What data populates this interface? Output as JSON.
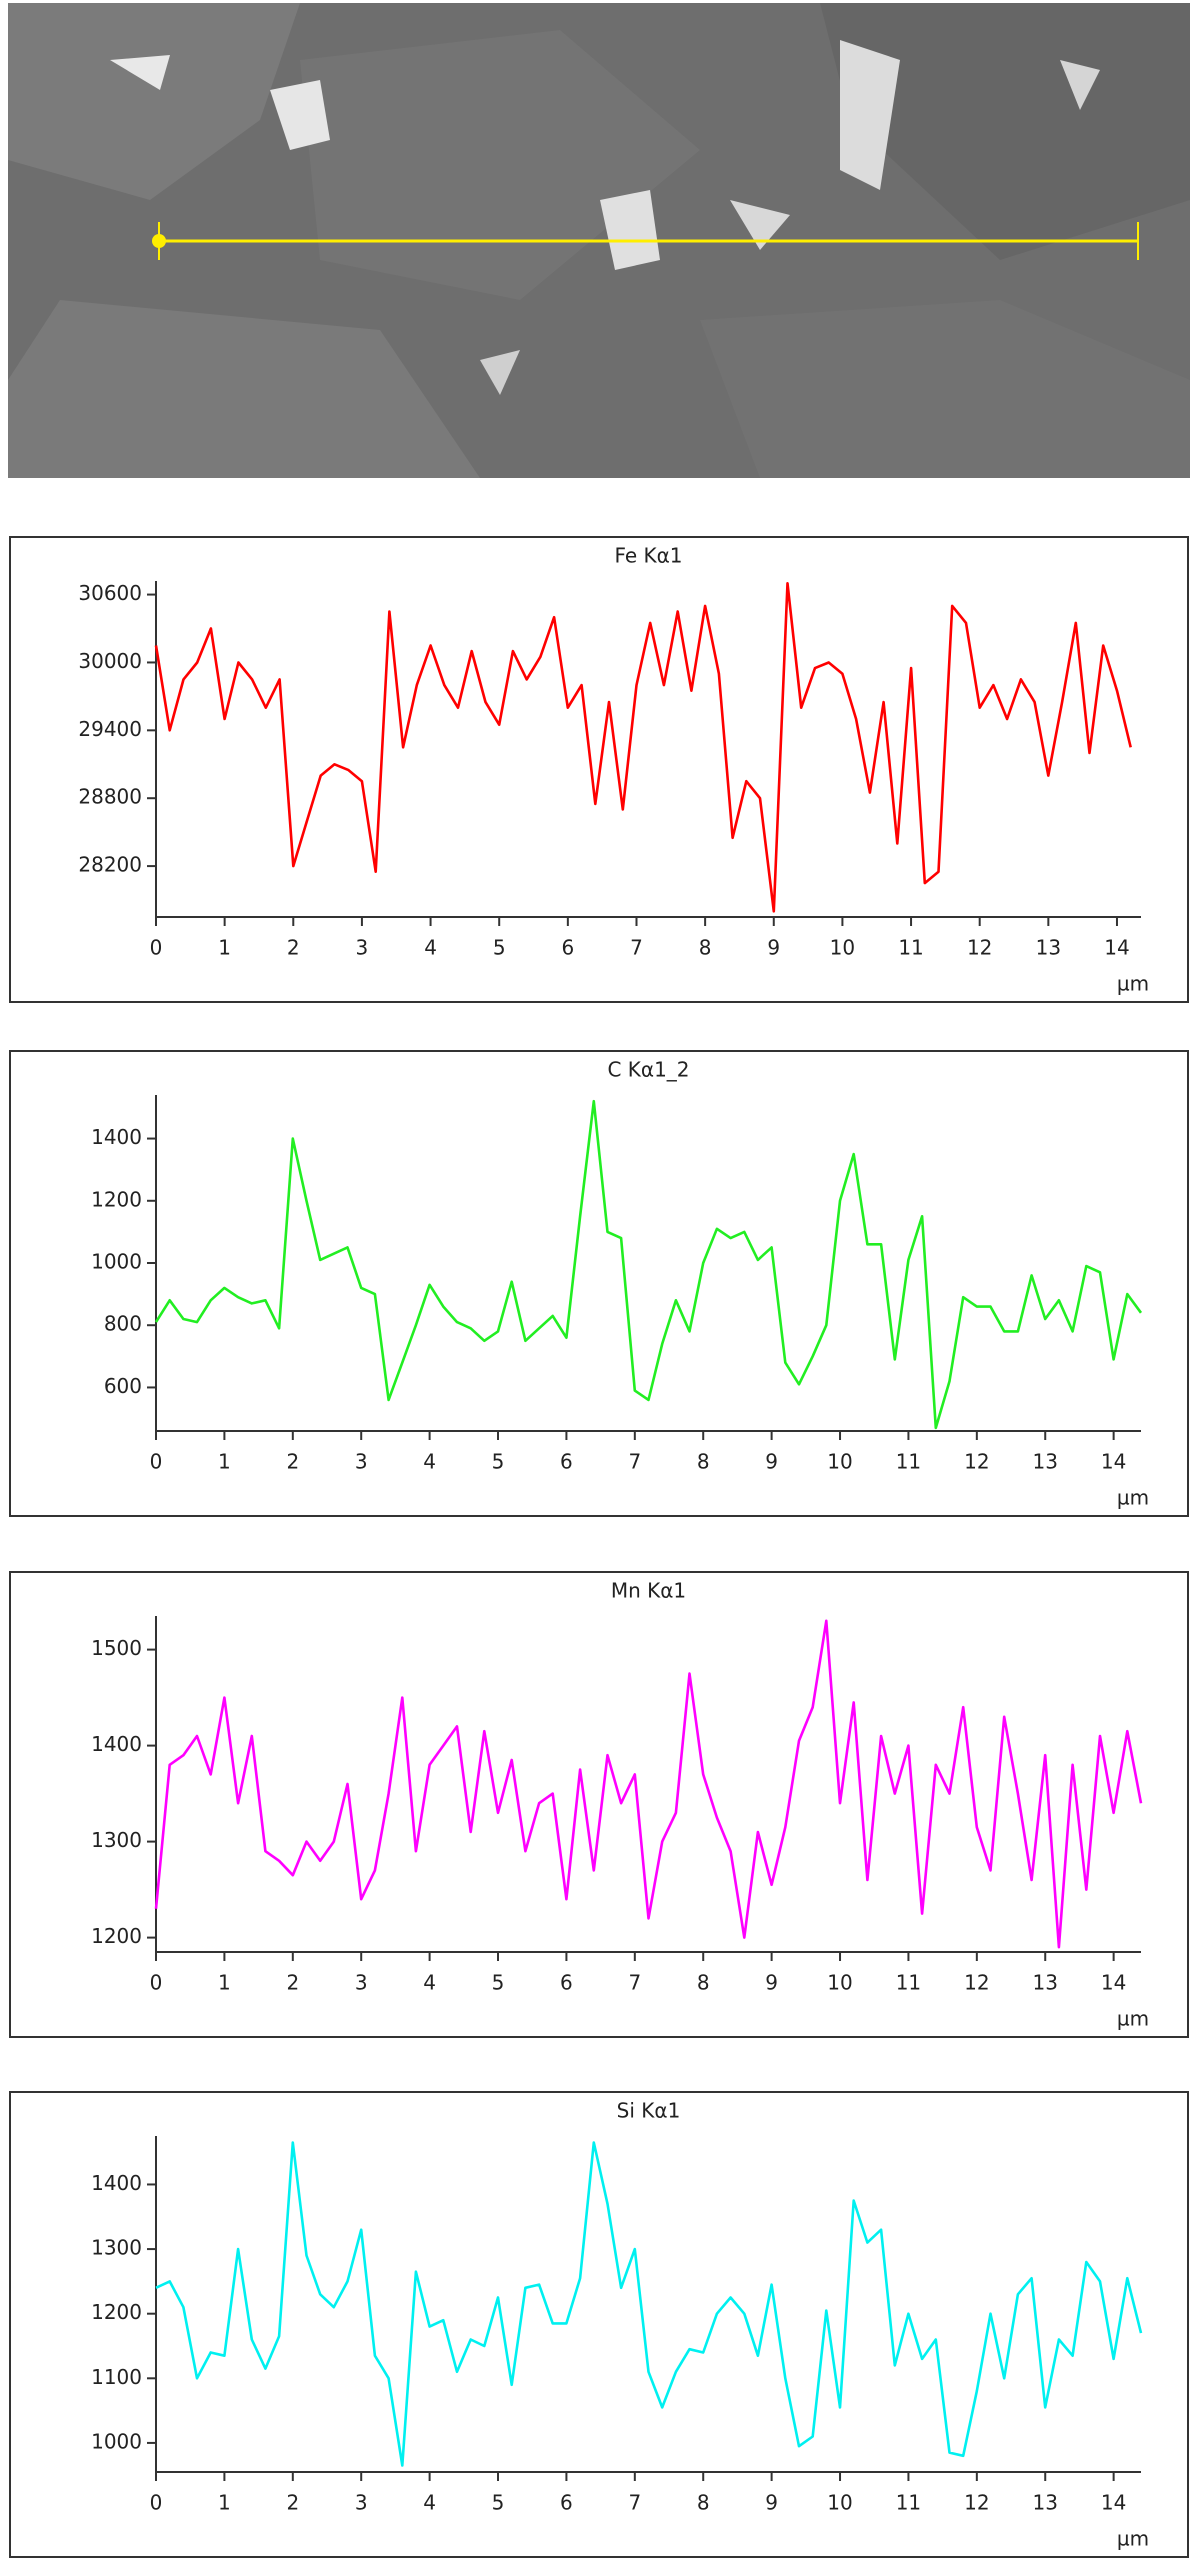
{
  "chart_data": [
    {
      "type": "line",
      "title": "Fe Kα1",
      "xlabel": "µm",
      "color": "#ff0000",
      "x": [
        0,
        0.2,
        0.4,
        0.6,
        0.8,
        1,
        1.2,
        1.4,
        1.6,
        1.8,
        2,
        2.2,
        2.4,
        2.6,
        2.8,
        3,
        3.2,
        3.4,
        3.6,
        3.8,
        4,
        4.2,
        4.4,
        4.6,
        4.8,
        5,
        5.2,
        5.4,
        5.6,
        5.8,
        6,
        6.2,
        6.4,
        6.6,
        6.8,
        7,
        7.2,
        7.4,
        7.6,
        7.8,
        8,
        8.2,
        8.4,
        8.6,
        8.8,
        9,
        9.2,
        9.4,
        9.6,
        9.8,
        10,
        10.2,
        10.4,
        10.6,
        10.8,
        11,
        11.2,
        11.4,
        11.6,
        11.8,
        12,
        12.2,
        12.4,
        12.6,
        12.8,
        13,
        13.2,
        13.4,
        13.6,
        13.8,
        14,
        14.2
      ],
      "values": [
        30150,
        29400,
        29850,
        30000,
        30300,
        29500,
        30000,
        29850,
        29600,
        29850,
        28200,
        28600,
        29000,
        29100,
        29050,
        28950,
        28150,
        30450,
        29250,
        29800,
        30150,
        29800,
        29600,
        30100,
        29650,
        29450,
        30100,
        29850,
        30050,
        30400,
        29600,
        29800,
        28750,
        29650,
        28700,
        29800,
        30350,
        29800,
        30450,
        29750,
        30500,
        29900,
        28450,
        28950,
        28800,
        27800,
        30700,
        29600,
        29950,
        30000,
        29900,
        29500,
        28850,
        29650,
        28400,
        29950,
        28050,
        28150,
        30500,
        30350,
        29600,
        29800,
        29500,
        29850,
        29650,
        29000,
        29650,
        30350,
        29200,
        30150,
        29750,
        29250
      ],
      "xlim": [
        0,
        14.35
      ],
      "xticks": [
        0,
        1,
        2,
        3,
        4,
        5,
        6,
        7,
        8,
        9,
        10,
        11,
        12,
        13,
        14
      ],
      "ylim": [
        27750,
        30720
      ],
      "yticks": [
        28200,
        28800,
        29400,
        30000,
        30600
      ]
    },
    {
      "type": "line",
      "title": "C Kα1_2",
      "xlabel": "µm",
      "color": "#22ee22",
      "x": [
        0,
        0.2,
        0.4,
        0.6,
        0.8,
        1,
        1.2,
        1.4,
        1.6,
        1.8,
        2,
        2.2,
        2.4,
        2.6,
        2.8,
        3,
        3.2,
        3.4,
        3.6,
        3.8,
        4,
        4.2,
        4.4,
        4.6,
        4.8,
        5,
        5.2,
        5.4,
        5.6,
        5.8,
        6,
        6.2,
        6.4,
        6.6,
        6.8,
        7,
        7.2,
        7.4,
        7.6,
        7.8,
        8,
        8.2,
        8.4,
        8.6,
        8.8,
        9,
        9.2,
        9.4,
        9.6,
        9.8,
        10,
        10.2,
        10.4,
        10.6,
        10.8,
        11,
        11.2,
        11.4,
        11.6,
        11.8,
        12,
        12.2,
        12.4,
        12.6,
        12.8,
        13,
        13.2,
        13.4,
        13.6,
        13.8,
        14,
        14.2,
        14.4
      ],
      "values": [
        810,
        880,
        820,
        810,
        880,
        920,
        890,
        870,
        880,
        790,
        1400,
        1200,
        1010,
        1030,
        1050,
        920,
        900,
        560,
        680,
        800,
        930,
        860,
        810,
        790,
        750,
        780,
        940,
        750,
        790,
        830,
        760,
        1150,
        1520,
        1100,
        1080,
        590,
        560,
        740,
        880,
        780,
        1000,
        1110,
        1080,
        1100,
        1010,
        1050,
        680,
        610,
        700,
        800,
        1200,
        1350,
        1060,
        1060,
        690,
        1010,
        1150,
        470,
        620,
        890,
        860,
        860,
        780,
        780,
        960,
        820,
        880,
        780,
        990,
        970,
        690,
        900,
        840
      ],
      "xlim": [
        0,
        14.4
      ],
      "xticks": [
        0,
        1,
        2,
        3,
        4,
        5,
        6,
        7,
        8,
        9,
        10,
        11,
        12,
        13,
        14
      ],
      "ylim": [
        460,
        1540
      ],
      "yticks": [
        600,
        800,
        1000,
        1200,
        1400
      ]
    },
    {
      "type": "line",
      "title": "Mn Kα1",
      "xlabel": "µm",
      "color": "#ff00ff",
      "x": [
        0,
        0.2,
        0.4,
        0.6,
        0.8,
        1,
        1.2,
        1.4,
        1.6,
        1.8,
        2,
        2.2,
        2.4,
        2.6,
        2.8,
        3,
        3.2,
        3.4,
        3.6,
        3.8,
        4,
        4.2,
        4.4,
        4.6,
        4.8,
        5,
        5.2,
        5.4,
        5.6,
        5.8,
        6,
        6.2,
        6.4,
        6.6,
        6.8,
        7,
        7.2,
        7.4,
        7.6,
        7.8,
        8,
        8.2,
        8.4,
        8.6,
        8.8,
        9,
        9.2,
        9.4,
        9.6,
        9.8,
        10,
        10.2,
        10.4,
        10.6,
        10.8,
        11,
        11.2,
        11.4,
        11.6,
        11.8,
        12,
        12.2,
        12.4,
        12.6,
        12.8,
        13,
        13.2,
        13.4,
        13.6,
        13.8,
        14,
        14.2,
        14.4
      ],
      "values": [
        1230,
        1380,
        1390,
        1410,
        1370,
        1450,
        1340,
        1410,
        1290,
        1280,
        1265,
        1300,
        1280,
        1300,
        1360,
        1240,
        1270,
        1350,
        1450,
        1290,
        1380,
        1400,
        1420,
        1310,
        1415,
        1330,
        1385,
        1290,
        1340,
        1350,
        1240,
        1375,
        1270,
        1390,
        1340,
        1370,
        1220,
        1300,
        1330,
        1475,
        1370,
        1325,
        1290,
        1200,
        1310,
        1255,
        1315,
        1405,
        1440,
        1530,
        1340,
        1445,
        1260,
        1410,
        1350,
        1400,
        1225,
        1380,
        1350,
        1440,
        1315,
        1270,
        1430,
        1350,
        1260,
        1390,
        1190,
        1380,
        1250,
        1410,
        1330,
        1415,
        1340
      ],
      "xlim": [
        0,
        14.4
      ],
      "xticks": [
        0,
        1,
        2,
        3,
        4,
        5,
        6,
        7,
        8,
        9,
        10,
        11,
        12,
        13,
        14
      ],
      "ylim": [
        1185,
        1535
      ],
      "yticks": [
        1200,
        1300,
        1400,
        1500
      ]
    },
    {
      "type": "line",
      "title": "Si Kα1",
      "xlabel": "µm",
      "color": "#00f0f0",
      "x": [
        0,
        0.2,
        0.4,
        0.6,
        0.8,
        1,
        1.2,
        1.4,
        1.6,
        1.8,
        2,
        2.2,
        2.4,
        2.6,
        2.8,
        3,
        3.2,
        3.4,
        3.6,
        3.8,
        4,
        4.2,
        4.4,
        4.6,
        4.8,
        5,
        5.2,
        5.4,
        5.6,
        5.8,
        6,
        6.2,
        6.4,
        6.6,
        6.8,
        7,
        7.2,
        7.4,
        7.6,
        7.8,
        8,
        8.2,
        8.4,
        8.6,
        8.8,
        9,
        9.2,
        9.4,
        9.6,
        9.8,
        10,
        10.2,
        10.4,
        10.6,
        10.8,
        11,
        11.2,
        11.4,
        11.6,
        11.8,
        12,
        12.2,
        12.4,
        12.6,
        12.8,
        13,
        13.2,
        13.4,
        13.6,
        13.8,
        14,
        14.2,
        14.4
      ],
      "values": [
        1240,
        1250,
        1210,
        1100,
        1140,
        1135,
        1300,
        1160,
        1115,
        1165,
        1465,
        1290,
        1230,
        1210,
        1250,
        1330,
        1135,
        1100,
        965,
        1265,
        1180,
        1190,
        1110,
        1160,
        1150,
        1225,
        1090,
        1240,
        1245,
        1185,
        1185,
        1255,
        1465,
        1370,
        1240,
        1300,
        1110,
        1055,
        1110,
        1145,
        1140,
        1200,
        1225,
        1200,
        1135,
        1245,
        1100,
        995,
        1010,
        1205,
        1055,
        1375,
        1310,
        1330,
        1120,
        1200,
        1130,
        1160,
        985,
        980,
        1080,
        1200,
        1100,
        1230,
        1255,
        1055,
        1160,
        1135,
        1280,
        1250,
        1130,
        1255,
        1170
      ],
      "xlim": [
        0,
        14.4
      ],
      "xticks": [
        0,
        1,
        2,
        3,
        4,
        5,
        6,
        7,
        8,
        9,
        10,
        11,
        12,
        13,
        14
      ],
      "ylim": [
        955,
        1475
      ],
      "yticks": [
        1000,
        1100,
        1200,
        1300,
        1400
      ]
    }
  ]
}
